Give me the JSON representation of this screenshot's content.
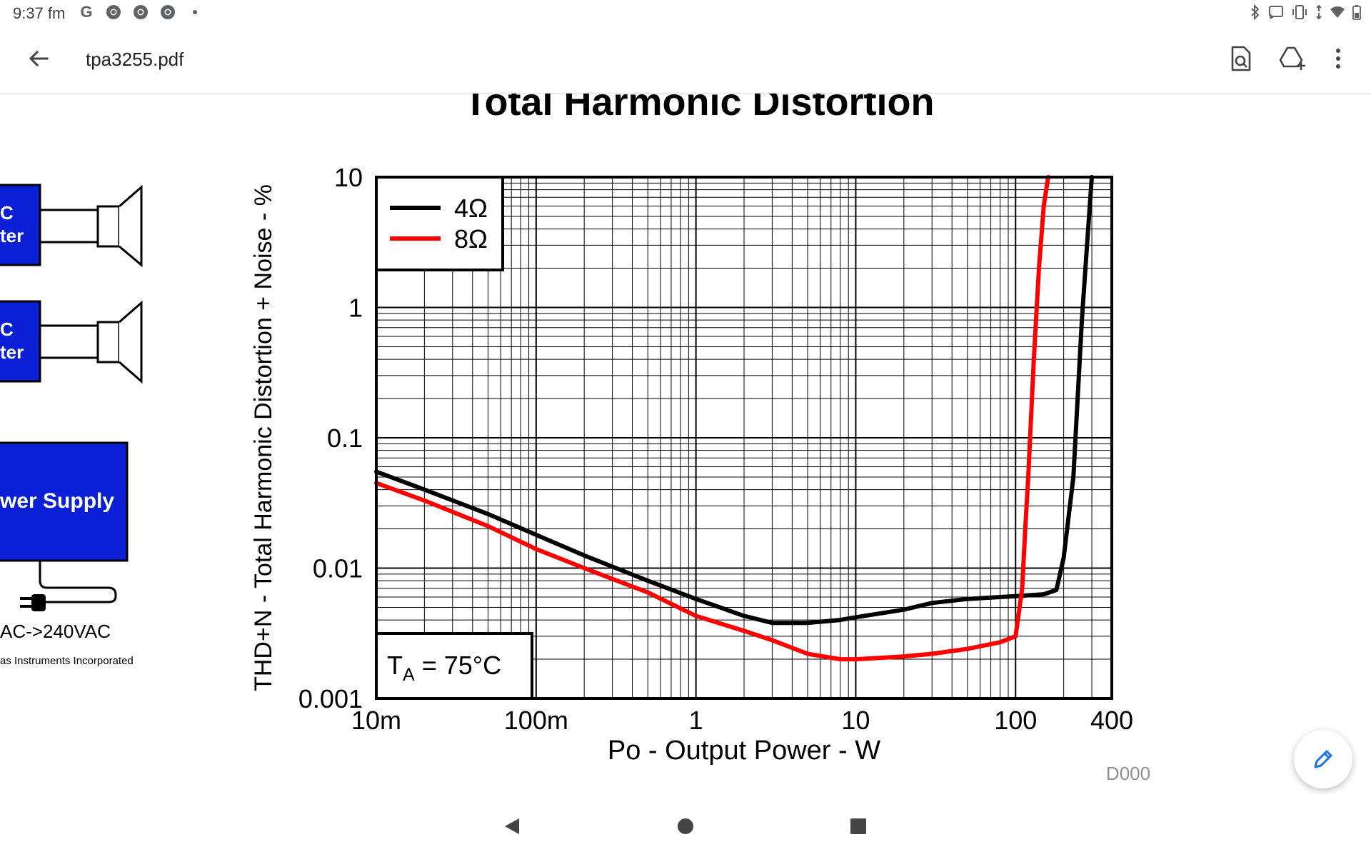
{
  "status_bar": {
    "time": "9:37 fm",
    "left_icons": [
      "google-icon",
      "chrome-icon",
      "chrome-icon",
      "chrome-icon",
      "dot-icon"
    ],
    "right_icons": [
      "bluetooth-icon",
      "cast-icon",
      "vibrate-icon",
      "wifi-icon",
      "battery-icon"
    ]
  },
  "app_bar": {
    "title": "tpa3255.pdf",
    "actions": [
      "find-in-document-icon",
      "add-to-drive-icon",
      "more-options-icon"
    ]
  },
  "document": {
    "left_panel": {
      "block1_lines": [
        "C",
        "ter"
      ],
      "block2_lines": [
        "C",
        "ter"
      ],
      "power_block_label": "wer Supply",
      "voltage_label": "AC->240VAC",
      "copyright": "as Instruments Incorporated"
    },
    "graph_id": "D000"
  },
  "chart_data": {
    "type": "line",
    "title": "Total Harmonic Distortion",
    "xlabel": "Po - Output Power - W",
    "ylabel": "THD+N - Total Harmonic Distortion + Noise - %",
    "xscale": "log",
    "yscale": "log",
    "xlim": [
      0.01,
      400
    ],
    "ylim": [
      0.001,
      10
    ],
    "x_tick_values": [
      0.01,
      0.1,
      1,
      10,
      100,
      400
    ],
    "x_tick_labels": [
      "10m",
      "100m",
      "1",
      "10",
      "100",
      "400"
    ],
    "y_tick_values": [
      10,
      1,
      0.1,
      0.01,
      0.001
    ],
    "y_tick_labels": [
      "10",
      "1",
      "0.1",
      "0.01",
      "0.001"
    ],
    "grid": true,
    "legend_position": "top-left",
    "annotation": {
      "prefix": "T",
      "subscript": "A",
      "suffix": " = 75°C"
    },
    "series": [
      {
        "name": "4Ω",
        "color": "#000000",
        "x": [
          0.01,
          0.02,
          0.05,
          0.1,
          0.2,
          0.5,
          1,
          2,
          3,
          5,
          8,
          10,
          20,
          30,
          50,
          80,
          100,
          150,
          180,
          200,
          230,
          260,
          280,
          300
        ],
        "y": [
          0.055,
          0.04,
          0.026,
          0.018,
          0.0125,
          0.008,
          0.0058,
          0.0043,
          0.0038,
          0.0038,
          0.004,
          0.0042,
          0.0048,
          0.0054,
          0.0058,
          0.006,
          0.0061,
          0.0063,
          0.0068,
          0.012,
          0.05,
          0.8,
          3,
          10
        ]
      },
      {
        "name": "8Ω",
        "color": "#ff0000",
        "x": [
          0.01,
          0.02,
          0.05,
          0.1,
          0.2,
          0.5,
          1,
          2,
          3,
          5,
          8,
          10,
          20,
          30,
          50,
          80,
          100,
          110,
          115,
          120,
          130,
          140,
          150,
          160
        ],
        "y": [
          0.045,
          0.033,
          0.021,
          0.014,
          0.01,
          0.0065,
          0.0043,
          0.0033,
          0.0028,
          0.0022,
          0.002,
          0.002,
          0.0021,
          0.0022,
          0.0024,
          0.0027,
          0.003,
          0.007,
          0.02,
          0.05,
          0.4,
          2,
          6,
          10
        ]
      }
    ]
  }
}
